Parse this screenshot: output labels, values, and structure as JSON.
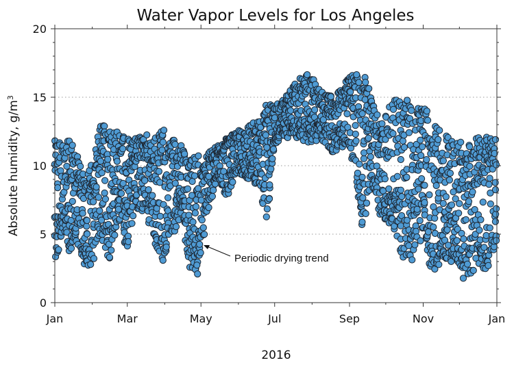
{
  "chart_data": {
    "type": "scatter",
    "title": "Water Vapor Levels for Los Angeles",
    "xlabel": "2016",
    "ylabel": "Absolute humidity, g/m",
    "ylabel_superscript": "3",
    "x_ticks": [
      "Jan",
      "Mar",
      "May",
      "Jul",
      "Sep",
      "Nov",
      "Jan"
    ],
    "x_tick_days": [
      0,
      60,
      121,
      182,
      244,
      305,
      366
    ],
    "xlim_days": [
      0,
      366
    ],
    "ylim": [
      0,
      20
    ],
    "y_ticks": [
      0,
      5,
      10,
      15,
      20
    ],
    "grid": "horizontal dotted at major y ticks",
    "marker_color": "#4f9bd4",
    "annotations": [
      {
        "text": "Periodic drying trend",
        "arrow_to": [
          121,
          4.2
        ]
      }
    ],
    "series": [
      {
        "values_note": "hourly absolute humidity approximated as daily min/max envelope",
        "daily": {
          "days": [
            0,
            7,
            12,
            18,
            25,
            31,
            38,
            45,
            52,
            60,
            66,
            75,
            82,
            90,
            98,
            105,
            112,
            118,
            121,
            128,
            135,
            142,
            150,
            160,
            170,
            175,
            182,
            190,
            200,
            210,
            220,
            230,
            244,
            255,
            262,
            270,
            280,
            290,
            300,
            305,
            312,
            320,
            330,
            340,
            350,
            356,
            362,
            366
          ],
          "low": [
            2.3,
            5.5,
            3.5,
            4.5,
            2.6,
            2.8,
            5.0,
            3.0,
            6.0,
            3.5,
            7.0,
            6.5,
            4.5,
            2.8,
            5.0,
            6.5,
            2.5,
            1.7,
            3.5,
            7.0,
            9.0,
            7.5,
            9.5,
            9.0,
            8.5,
            5.5,
            11.5,
            12.0,
            12.0,
            11.5,
            12.0,
            11.0,
            11.5,
            5.0,
            9.0,
            6.0,
            5.5,
            2.5,
            3.5,
            5.5,
            2.0,
            3.0,
            3.0,
            1.5,
            2.5,
            1.8,
            3.5,
            4.0
          ],
          "high": [
            12.0,
            11.5,
            12.0,
            11.0,
            9.0,
            10.5,
            13.2,
            12.5,
            12.5,
            12.2,
            12.0,
            12.5,
            12.0,
            12.8,
            12.0,
            11.5,
            10.5,
            11.0,
            10.0,
            11.0,
            11.5,
            12.0,
            12.5,
            13.0,
            13.3,
            14.5,
            14.5,
            14.8,
            16.5,
            16.9,
            15.5,
            15.0,
            16.5,
            17.0,
            15.0,
            13.0,
            15.1,
            14.8,
            15.0,
            14.5,
            13.5,
            12.5,
            12.0,
            11.5,
            12.6,
            12.3,
            12.0,
            12.0
          ]
        }
      }
    ]
  }
}
